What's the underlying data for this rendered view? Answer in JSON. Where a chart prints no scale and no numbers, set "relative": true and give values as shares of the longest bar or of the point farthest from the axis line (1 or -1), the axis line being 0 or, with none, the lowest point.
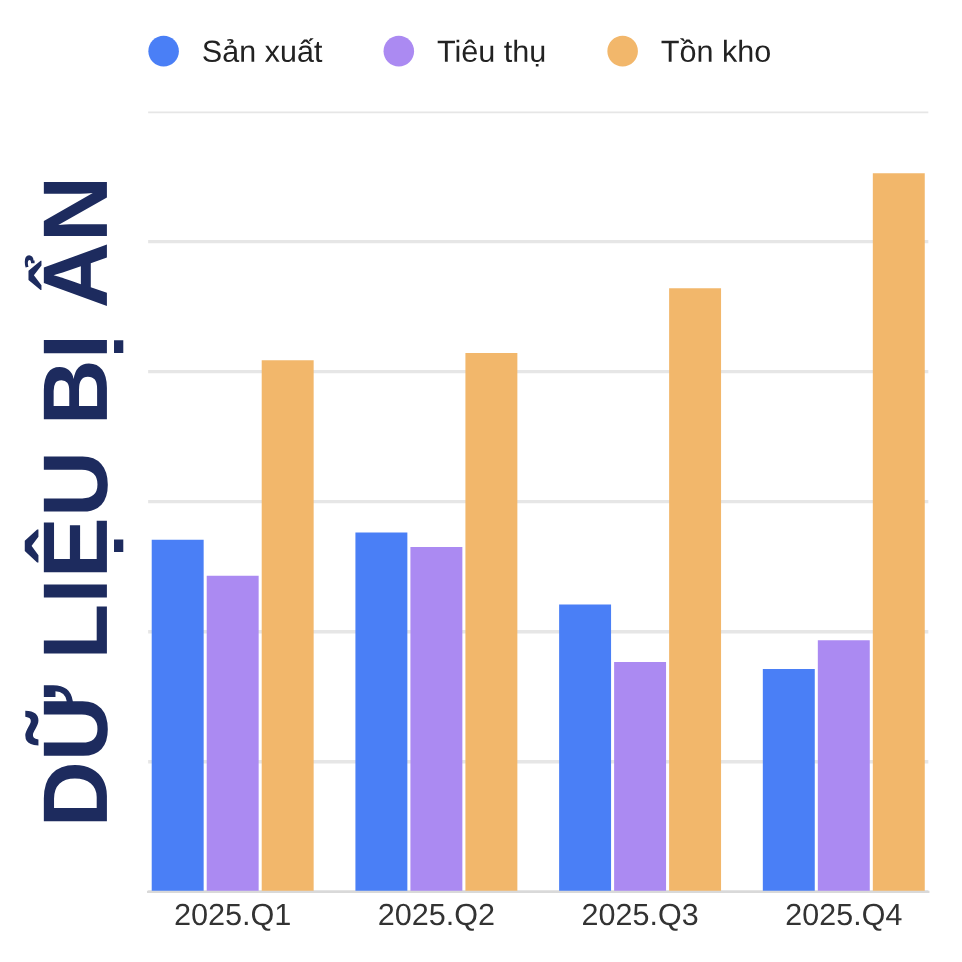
{
  "chart_data": {
    "type": "bar",
    "ylabel": "DỮ LIỆU BỊ ẨN",
    "categories": [
      "2025.Q1",
      "2025.Q2",
      "2025.Q3",
      "2025.Q4"
    ],
    "relative": true,
    "series": [
      {
        "name": "Sản xuất",
        "color": "#4a7ff6",
        "values": [
          0.49,
          0.5,
          0.4,
          0.31
        ]
      },
      {
        "name": "Tiêu thụ",
        "color": "#ab8af2",
        "values": [
          0.44,
          0.48,
          0.32,
          0.35
        ]
      },
      {
        "name": "Tồn kho",
        "color": "#f2b76b",
        "values": [
          0.74,
          0.75,
          0.84,
          1
        ]
      }
    ],
    "grid": "y",
    "legend": "top left"
  }
}
